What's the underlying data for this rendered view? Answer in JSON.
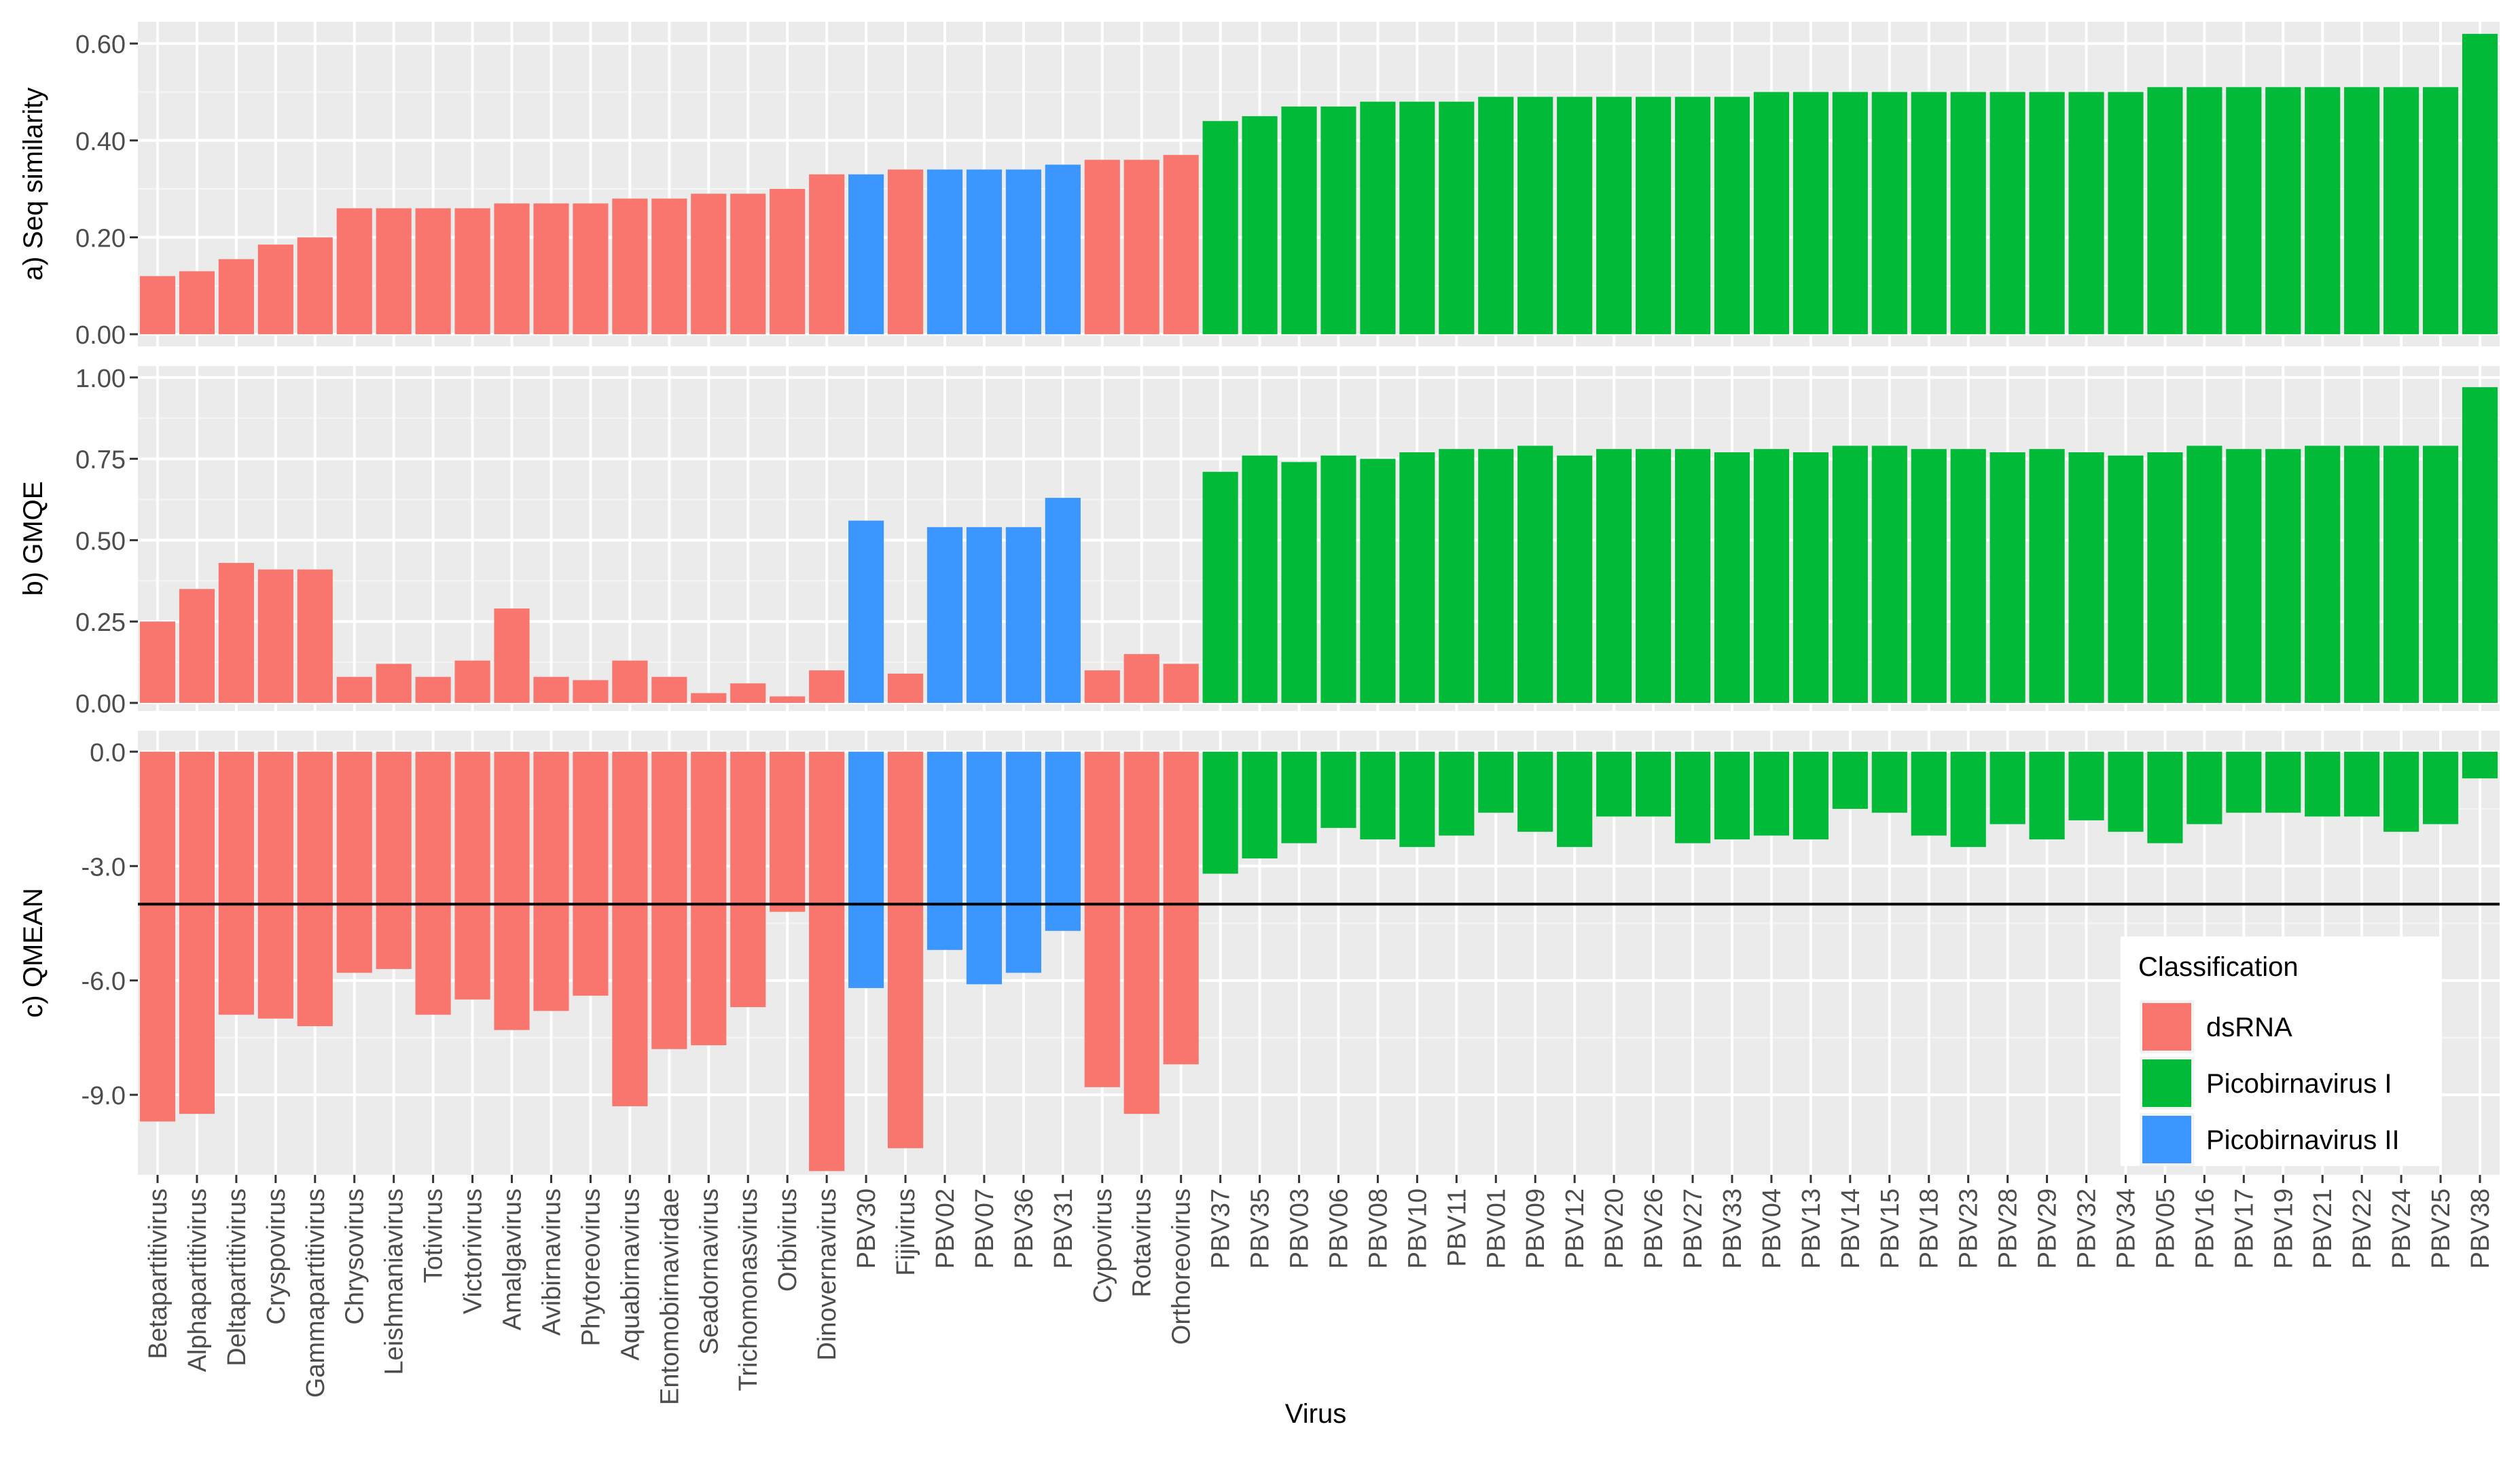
{
  "chart_data": {
    "type": "bar",
    "xlabel": "Virus",
    "categories": [
      "Betapartitivirus",
      "Alphapartitivirus",
      "Deltapartitivirus",
      "Cryspovirus",
      "Gammapartitivirus",
      "Chrysovirus",
      "Leishmaniavirus",
      "Totivirus",
      "Victorivirus",
      "Amalgavirus",
      "Avibirnavirus",
      "Phytoreovirus",
      "Aquabirnavirus",
      "Entomobirnavirdae",
      "Seadornavirus",
      "Trichomonasvirus",
      "Orbivirus",
      "Dinovernavirus",
      "PBV30",
      "Fijivirus",
      "PBV02",
      "PBV07",
      "PBV36",
      "PBV31",
      "Cypovirus",
      "Rotavirus",
      "Orthoreovirus",
      "PBV37",
      "PBV35",
      "PBV03",
      "PBV06",
      "PBV08",
      "PBV10",
      "PBV11",
      "PBV01",
      "PBV09",
      "PBV12",
      "PBV20",
      "PBV26",
      "PBV27",
      "PBV33",
      "PBV04",
      "PBV13",
      "PBV14",
      "PBV15",
      "PBV18",
      "PBV23",
      "PBV28",
      "PBV29",
      "PBV32",
      "PBV34",
      "PBV05",
      "PBV16",
      "PBV17",
      "PBV19",
      "PBV21",
      "PBV22",
      "PBV24",
      "PBV25",
      "PBV38"
    ],
    "classification": [
      "dsRNA",
      "dsRNA",
      "dsRNA",
      "dsRNA",
      "dsRNA",
      "dsRNA",
      "dsRNA",
      "dsRNA",
      "dsRNA",
      "dsRNA",
      "dsRNA",
      "dsRNA",
      "dsRNA",
      "dsRNA",
      "dsRNA",
      "dsRNA",
      "dsRNA",
      "dsRNA",
      "Picobirnavirus II",
      "dsRNA",
      "Picobirnavirus II",
      "Picobirnavirus II",
      "Picobirnavirus II",
      "Picobirnavirus II",
      "dsRNA",
      "dsRNA",
      "dsRNA",
      "Picobirnavirus I",
      "Picobirnavirus I",
      "Picobirnavirus I",
      "Picobirnavirus I",
      "Picobirnavirus I",
      "Picobirnavirus I",
      "Picobirnavirus I",
      "Picobirnavirus I",
      "Picobirnavirus I",
      "Picobirnavirus I",
      "Picobirnavirus I",
      "Picobirnavirus I",
      "Picobirnavirus I",
      "Picobirnavirus I",
      "Picobirnavirus I",
      "Picobirnavirus I",
      "Picobirnavirus I",
      "Picobirnavirus I",
      "Picobirnavirus I",
      "Picobirnavirus I",
      "Picobirnavirus I",
      "Picobirnavirus I",
      "Picobirnavirus I",
      "Picobirnavirus I",
      "Picobirnavirus I",
      "Picobirnavirus I",
      "Picobirnavirus I",
      "Picobirnavirus I",
      "Picobirnavirus I",
      "Picobirnavirus I",
      "Picobirnavirus I",
      "Picobirnavirus I",
      "Picobirnavirus I"
    ],
    "panels": [
      {
        "ylabel": "a) Seq similarity",
        "ylim": [
          -0.025,
          0.645
        ],
        "ticks": [
          0.0,
          0.2,
          0.4,
          0.6
        ],
        "tick_labels": [
          "0.00",
          "0.20",
          "0.40",
          "0.60"
        ],
        "values": [
          0.12,
          0.13,
          0.155,
          0.185,
          0.2,
          0.26,
          0.26,
          0.26,
          0.26,
          0.27,
          0.27,
          0.27,
          0.28,
          0.28,
          0.29,
          0.29,
          0.3,
          0.33,
          0.33,
          0.34,
          0.34,
          0.34,
          0.34,
          0.35,
          0.36,
          0.36,
          0.37,
          0.44,
          0.45,
          0.47,
          0.47,
          0.48,
          0.48,
          0.48,
          0.49,
          0.49,
          0.49,
          0.49,
          0.49,
          0.49,
          0.49,
          0.5,
          0.5,
          0.5,
          0.5,
          0.5,
          0.5,
          0.5,
          0.5,
          0.5,
          0.5,
          0.51,
          0.51,
          0.51,
          0.51,
          0.51,
          0.51,
          0.51,
          0.51,
          0.62
        ]
      },
      {
        "ylabel": "b) GMQE",
        "ylim": [
          -0.025,
          1.035
        ],
        "ticks": [
          0.0,
          0.25,
          0.5,
          0.75,
          1.0
        ],
        "tick_labels": [
          "0.00",
          "0.25",
          "0.50",
          "0.75",
          "1.00"
        ],
        "values": [
          0.25,
          0.35,
          0.43,
          0.41,
          0.41,
          0.08,
          0.12,
          0.08,
          0.13,
          0.29,
          0.08,
          0.07,
          0.13,
          0.08,
          0.03,
          0.06,
          0.02,
          0.1,
          0.56,
          0.09,
          0.54,
          0.54,
          0.54,
          0.63,
          0.1,
          0.15,
          0.12,
          0.71,
          0.76,
          0.74,
          0.76,
          0.75,
          0.77,
          0.78,
          0.78,
          0.79,
          0.76,
          0.78,
          0.78,
          0.78,
          0.77,
          0.78,
          0.77,
          0.79,
          0.79,
          0.78,
          0.78,
          0.77,
          0.78,
          0.77,
          0.76,
          0.77,
          0.79,
          0.78,
          0.78,
          0.79,
          0.79,
          0.79,
          0.79,
          0.97
        ]
      },
      {
        "ylabel": "c) QMEAN",
        "ylim": [
          -11.1,
          0.55
        ],
        "ticks": [
          0.0,
          -3.0,
          -6.0,
          -9.0
        ],
        "tick_labels": [
          "0.0",
          "-3.0",
          "-6.0",
          "-9.0"
        ],
        "reference_line": -4.0,
        "values": [
          -9.7,
          -9.5,
          -6.9,
          -7.0,
          -7.2,
          -5.8,
          -5.7,
          -6.9,
          -6.5,
          -7.3,
          -6.8,
          -6.4,
          -9.3,
          -7.8,
          -7.7,
          -6.7,
          -4.2,
          -11.0,
          -6.2,
          -10.4,
          -5.2,
          -6.1,
          -5.8,
          -4.7,
          -8.8,
          -9.5,
          -8.2,
          -3.2,
          -2.8,
          -2.4,
          -2.0,
          -2.3,
          -2.5,
          -2.2,
          -1.6,
          -2.1,
          -2.5,
          -1.7,
          -1.7,
          -2.4,
          -2.3,
          -2.2,
          -2.3,
          -1.5,
          -1.6,
          -2.2,
          -2.5,
          -1.9,
          -2.3,
          -1.8,
          -2.1,
          -2.4,
          -1.9,
          -1.6,
          -1.6,
          -1.7,
          -1.7,
          -2.1,
          -1.9,
          -0.7
        ]
      }
    ],
    "legend": {
      "title": "Classification",
      "position": "right, inside panel c",
      "entries": [
        {
          "label": "dsRNA",
          "color": "#F8766D"
        },
        {
          "label": "Picobirnavirus I",
          "color": "#00BA38"
        },
        {
          "label": "Picobirnavirus II",
          "color": "#3C96FF"
        }
      ]
    },
    "colors": {
      "panel_background": "#EBEBEB",
      "grid_major": "#FFFFFF",
      "grid_minor": "#F5F5F5",
      "tick_color": "#333333",
      "reference_line": "#000000"
    }
  }
}
